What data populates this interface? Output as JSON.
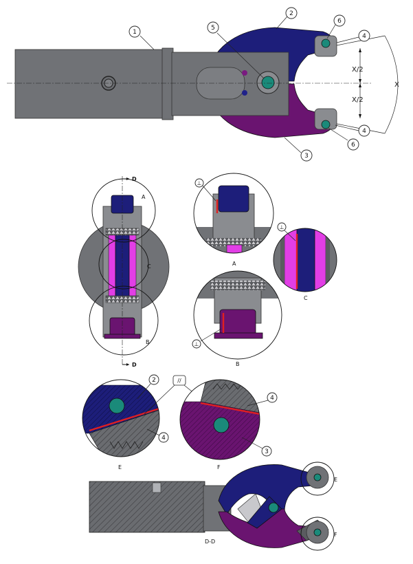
{
  "balloons": {
    "b1": "1",
    "b2": "2",
    "b3": "3",
    "b4a": "4",
    "b4b": "4",
    "b5": "5",
    "b6a": "6",
    "b6b": "6",
    "e2": "2",
    "e4": "4",
    "f4": "4",
    "f3": "3"
  },
  "dimensions": {
    "half_top": "X/2",
    "half_bottom": "X/2",
    "full": "X"
  },
  "section_labels": {
    "d_top": "D",
    "d_bottom": "D",
    "section_dd": "D-D"
  },
  "detail_labels": {
    "a_marker": "A",
    "b_marker": "B",
    "c_marker": "C",
    "a_caption": "A",
    "b_caption": "B",
    "c_caption": "C",
    "e_caption": "E",
    "f_caption": "F",
    "e_marker": "E",
    "f_marker": "F"
  },
  "tolerance_symbols": {
    "parallel": "//",
    "detail_a": "⊥",
    "detail_c": "⊥",
    "detail_b": "⊥"
  },
  "colors": {
    "steel": "#707276",
    "upper_jaw": "#1d1e7a",
    "lower_jaw": "#6a1470",
    "pin": "#1a8a7a",
    "contact_face": "#e02020"
  }
}
